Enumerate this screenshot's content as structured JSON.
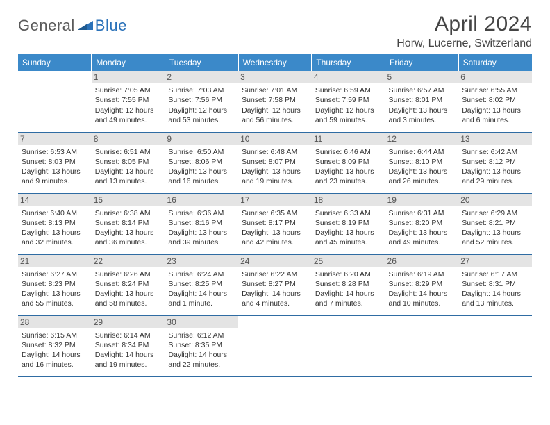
{
  "branding": {
    "name_part1": "General",
    "name_part2": "Blue",
    "text_color_1": "#5a5a5a",
    "text_color_2": "#2b72b9",
    "mark_color": "#2b72b9"
  },
  "header": {
    "title": "April 2024",
    "location": "Horw, Lucerne, Switzerland",
    "title_fontsize": 30,
    "location_fontsize": 16
  },
  "style": {
    "header_row_bg": "#3b89c9",
    "header_row_fg": "#ffffff",
    "daynum_bg": "#e4e4e4",
    "daynum_fg": "#555555",
    "row_border_color": "#2f6ca3",
    "body_font_size": 10.5,
    "header_font_size": 12
  },
  "columns": [
    "Sunday",
    "Monday",
    "Tuesday",
    "Wednesday",
    "Thursday",
    "Friday",
    "Saturday"
  ],
  "weeks": [
    [
      null,
      {
        "n": "1",
        "sr": "Sunrise: 7:05 AM",
        "ss": "Sunset: 7:55 PM",
        "d1": "Daylight: 12 hours",
        "d2": "and 49 minutes."
      },
      {
        "n": "2",
        "sr": "Sunrise: 7:03 AM",
        "ss": "Sunset: 7:56 PM",
        "d1": "Daylight: 12 hours",
        "d2": "and 53 minutes."
      },
      {
        "n": "3",
        "sr": "Sunrise: 7:01 AM",
        "ss": "Sunset: 7:58 PM",
        "d1": "Daylight: 12 hours",
        "d2": "and 56 minutes."
      },
      {
        "n": "4",
        "sr": "Sunrise: 6:59 AM",
        "ss": "Sunset: 7:59 PM",
        "d1": "Daylight: 12 hours",
        "d2": "and 59 minutes."
      },
      {
        "n": "5",
        "sr": "Sunrise: 6:57 AM",
        "ss": "Sunset: 8:01 PM",
        "d1": "Daylight: 13 hours",
        "d2": "and 3 minutes."
      },
      {
        "n": "6",
        "sr": "Sunrise: 6:55 AM",
        "ss": "Sunset: 8:02 PM",
        "d1": "Daylight: 13 hours",
        "d2": "and 6 minutes."
      }
    ],
    [
      {
        "n": "7",
        "sr": "Sunrise: 6:53 AM",
        "ss": "Sunset: 8:03 PM",
        "d1": "Daylight: 13 hours",
        "d2": "and 9 minutes."
      },
      {
        "n": "8",
        "sr": "Sunrise: 6:51 AM",
        "ss": "Sunset: 8:05 PM",
        "d1": "Daylight: 13 hours",
        "d2": "and 13 minutes."
      },
      {
        "n": "9",
        "sr": "Sunrise: 6:50 AM",
        "ss": "Sunset: 8:06 PM",
        "d1": "Daylight: 13 hours",
        "d2": "and 16 minutes."
      },
      {
        "n": "10",
        "sr": "Sunrise: 6:48 AM",
        "ss": "Sunset: 8:07 PM",
        "d1": "Daylight: 13 hours",
        "d2": "and 19 minutes."
      },
      {
        "n": "11",
        "sr": "Sunrise: 6:46 AM",
        "ss": "Sunset: 8:09 PM",
        "d1": "Daylight: 13 hours",
        "d2": "and 23 minutes."
      },
      {
        "n": "12",
        "sr": "Sunrise: 6:44 AM",
        "ss": "Sunset: 8:10 PM",
        "d1": "Daylight: 13 hours",
        "d2": "and 26 minutes."
      },
      {
        "n": "13",
        "sr": "Sunrise: 6:42 AM",
        "ss": "Sunset: 8:12 PM",
        "d1": "Daylight: 13 hours",
        "d2": "and 29 minutes."
      }
    ],
    [
      {
        "n": "14",
        "sr": "Sunrise: 6:40 AM",
        "ss": "Sunset: 8:13 PM",
        "d1": "Daylight: 13 hours",
        "d2": "and 32 minutes."
      },
      {
        "n": "15",
        "sr": "Sunrise: 6:38 AM",
        "ss": "Sunset: 8:14 PM",
        "d1": "Daylight: 13 hours",
        "d2": "and 36 minutes."
      },
      {
        "n": "16",
        "sr": "Sunrise: 6:36 AM",
        "ss": "Sunset: 8:16 PM",
        "d1": "Daylight: 13 hours",
        "d2": "and 39 minutes."
      },
      {
        "n": "17",
        "sr": "Sunrise: 6:35 AM",
        "ss": "Sunset: 8:17 PM",
        "d1": "Daylight: 13 hours",
        "d2": "and 42 minutes."
      },
      {
        "n": "18",
        "sr": "Sunrise: 6:33 AM",
        "ss": "Sunset: 8:19 PM",
        "d1": "Daylight: 13 hours",
        "d2": "and 45 minutes."
      },
      {
        "n": "19",
        "sr": "Sunrise: 6:31 AM",
        "ss": "Sunset: 8:20 PM",
        "d1": "Daylight: 13 hours",
        "d2": "and 49 minutes."
      },
      {
        "n": "20",
        "sr": "Sunrise: 6:29 AM",
        "ss": "Sunset: 8:21 PM",
        "d1": "Daylight: 13 hours",
        "d2": "and 52 minutes."
      }
    ],
    [
      {
        "n": "21",
        "sr": "Sunrise: 6:27 AM",
        "ss": "Sunset: 8:23 PM",
        "d1": "Daylight: 13 hours",
        "d2": "and 55 minutes."
      },
      {
        "n": "22",
        "sr": "Sunrise: 6:26 AM",
        "ss": "Sunset: 8:24 PM",
        "d1": "Daylight: 13 hours",
        "d2": "and 58 minutes."
      },
      {
        "n": "23",
        "sr": "Sunrise: 6:24 AM",
        "ss": "Sunset: 8:25 PM",
        "d1": "Daylight: 14 hours",
        "d2": "and 1 minute."
      },
      {
        "n": "24",
        "sr": "Sunrise: 6:22 AM",
        "ss": "Sunset: 8:27 PM",
        "d1": "Daylight: 14 hours",
        "d2": "and 4 minutes."
      },
      {
        "n": "25",
        "sr": "Sunrise: 6:20 AM",
        "ss": "Sunset: 8:28 PM",
        "d1": "Daylight: 14 hours",
        "d2": "and 7 minutes."
      },
      {
        "n": "26",
        "sr": "Sunrise: 6:19 AM",
        "ss": "Sunset: 8:29 PM",
        "d1": "Daylight: 14 hours",
        "d2": "and 10 minutes."
      },
      {
        "n": "27",
        "sr": "Sunrise: 6:17 AM",
        "ss": "Sunset: 8:31 PM",
        "d1": "Daylight: 14 hours",
        "d2": "and 13 minutes."
      }
    ],
    [
      {
        "n": "28",
        "sr": "Sunrise: 6:15 AM",
        "ss": "Sunset: 8:32 PM",
        "d1": "Daylight: 14 hours",
        "d2": "and 16 minutes."
      },
      {
        "n": "29",
        "sr": "Sunrise: 6:14 AM",
        "ss": "Sunset: 8:34 PM",
        "d1": "Daylight: 14 hours",
        "d2": "and 19 minutes."
      },
      {
        "n": "30",
        "sr": "Sunrise: 6:12 AM",
        "ss": "Sunset: 8:35 PM",
        "d1": "Daylight: 14 hours",
        "d2": "and 22 minutes."
      },
      null,
      null,
      null,
      null
    ]
  ]
}
